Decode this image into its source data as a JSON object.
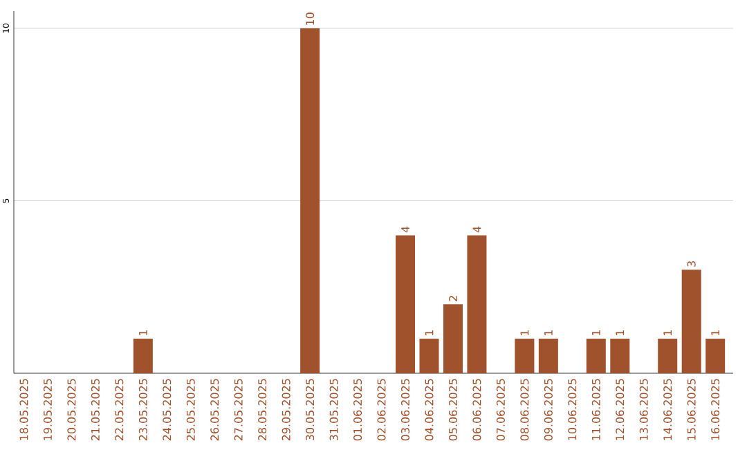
{
  "chart_data": {
    "type": "bar",
    "categories": [
      "18.05.2025",
      "19.05.2025",
      "20.05.2025",
      "21.05.2025",
      "22.05.2025",
      "23.05.2025",
      "24.05.2025",
      "25.05.2025",
      "26.05.2025",
      "27.05.2025",
      "28.05.2025",
      "29.05.2025",
      "30.05.2025",
      "31.05.2025",
      "01.06.2025",
      "02.06.2025",
      "03.06.2025",
      "04.06.2025",
      "05.06.2025",
      "06.06.2025",
      "07.06.2025",
      "08.06.2025",
      "09.06.2025",
      "10.06.2025",
      "11.06.2025",
      "12.06.2025",
      "13.06.2025",
      "14.06.2025",
      "15.06.2025",
      "16.06.2025"
    ],
    "values": [
      0,
      0,
      0,
      0,
      0,
      1,
      0,
      0,
      0,
      0,
      0,
      0,
      10,
      0,
      0,
      0,
      4,
      1,
      2,
      4,
      0,
      1,
      1,
      0,
      1,
      1,
      0,
      1,
      3,
      1
    ],
    "value_labels": [
      null,
      null,
      null,
      null,
      null,
      "1",
      null,
      null,
      null,
      null,
      null,
      null,
      "10",
      null,
      null,
      null,
      "4",
      "1",
      "2",
      "4",
      null,
      "1",
      "1",
      null,
      "1",
      "1",
      null,
      "1",
      "3",
      "1"
    ],
    "color": "#a0522d",
    "ylim": [
      0,
      10.5
    ],
    "yticks": [
      5,
      10
    ],
    "grid": "y"
  }
}
